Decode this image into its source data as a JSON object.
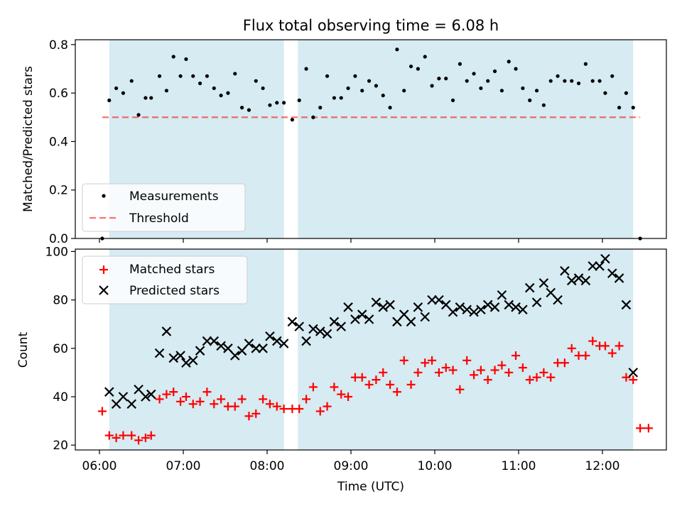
{
  "chart_data": {
    "type": "scatter",
    "title": "Flux total observing time = 6.08 h",
    "xlabel": "Time (UTC)",
    "x_ticks": [
      "06:00",
      "07:00",
      "08:00",
      "09:00",
      "10:00",
      "11:00",
      "12:00"
    ],
    "observing_windows": [
      [
        "06:07",
        "08:12"
      ],
      [
        "08:22",
        "12:22"
      ]
    ],
    "top_panel": {
      "ylabel": "Matched/Predicted stars",
      "ylim": [
        0,
        0.82
      ],
      "yticks": [
        "0.0",
        "0.2",
        "0.4",
        "0.6",
        "0.8"
      ],
      "threshold": 0.5,
      "legend": {
        "placement": "lower-left",
        "measurements": "Measurements",
        "threshold": "Threshold"
      },
      "measurements": [
        [
          "06:02",
          0.0
        ],
        [
          "06:07",
          0.57
        ],
        [
          "06:12",
          0.62
        ],
        [
          "06:17",
          0.6
        ],
        [
          "06:23",
          0.65
        ],
        [
          "06:28",
          0.51
        ],
        [
          "06:33",
          0.58
        ],
        [
          "06:37",
          0.58
        ],
        [
          "06:43",
          0.67
        ],
        [
          "06:48",
          0.61
        ],
        [
          "06:53",
          0.75
        ],
        [
          "06:58",
          0.67
        ],
        [
          "07:02",
          0.74
        ],
        [
          "07:07",
          0.67
        ],
        [
          "07:12",
          0.64
        ],
        [
          "07:17",
          0.67
        ],
        [
          "07:22",
          0.62
        ],
        [
          "07:27",
          0.59
        ],
        [
          "07:32",
          0.6
        ],
        [
          "07:37",
          0.68
        ],
        [
          "07:42",
          0.54
        ],
        [
          "07:47",
          0.53
        ],
        [
          "07:52",
          0.65
        ],
        [
          "07:57",
          0.62
        ],
        [
          "08:02",
          0.55
        ],
        [
          "08:07",
          0.56
        ],
        [
          "08:12",
          0.56
        ],
        [
          "08:18",
          0.49
        ],
        [
          "08:23",
          0.57
        ],
        [
          "08:28",
          0.7
        ],
        [
          "08:33",
          0.5
        ],
        [
          "08:38",
          0.54
        ],
        [
          "08:43",
          0.67
        ],
        [
          "08:48",
          0.58
        ],
        [
          "08:53",
          0.58
        ],
        [
          "08:58",
          0.62
        ],
        [
          "09:03",
          0.67
        ],
        [
          "09:08",
          0.61
        ],
        [
          "09:13",
          0.65
        ],
        [
          "09:18",
          0.63
        ],
        [
          "09:23",
          0.59
        ],
        [
          "09:28",
          0.54
        ],
        [
          "09:33",
          0.78
        ],
        [
          "09:38",
          0.61
        ],
        [
          "09:43",
          0.71
        ],
        [
          "09:48",
          0.7
        ],
        [
          "09:53",
          0.75
        ],
        [
          "09:58",
          0.63
        ],
        [
          "10:03",
          0.66
        ],
        [
          "10:08",
          0.66
        ],
        [
          "10:13",
          0.57
        ],
        [
          "10:18",
          0.72
        ],
        [
          "10:23",
          0.65
        ],
        [
          "10:28",
          0.68
        ],
        [
          "10:33",
          0.62
        ],
        [
          "10:38",
          0.65
        ],
        [
          "10:43",
          0.69
        ],
        [
          "10:48",
          0.61
        ],
        [
          "10:53",
          0.73
        ],
        [
          "10:58",
          0.7
        ],
        [
          "11:03",
          0.62
        ],
        [
          "11:08",
          0.57
        ],
        [
          "11:13",
          0.61
        ],
        [
          "11:18",
          0.55
        ],
        [
          "11:23",
          0.65
        ],
        [
          "11:28",
          0.67
        ],
        [
          "11:33",
          0.65
        ],
        [
          "11:38",
          0.65
        ],
        [
          "11:43",
          0.64
        ],
        [
          "11:48",
          0.72
        ],
        [
          "11:53",
          0.65
        ],
        [
          "11:58",
          0.65
        ],
        [
          "12:02",
          0.6
        ],
        [
          "12:07",
          0.67
        ],
        [
          "12:12",
          0.54
        ],
        [
          "12:17",
          0.6
        ],
        [
          "12:22",
          0.54
        ],
        [
          "12:27",
          0.0
        ]
      ]
    },
    "bottom_panel": {
      "ylabel": "Count",
      "ylim": [
        18,
        101
      ],
      "yticks": [
        "20",
        "40",
        "60",
        "80",
        "100"
      ],
      "legend": {
        "placement": "upper-left",
        "matched": "Matched stars",
        "predicted": "Predicted stars"
      },
      "matched": [
        [
          "06:02",
          34
        ],
        [
          "06:07",
          24
        ],
        [
          "06:12",
          23
        ],
        [
          "06:17",
          24
        ],
        [
          "06:23",
          24
        ],
        [
          "06:28",
          22
        ],
        [
          "06:33",
          23
        ],
        [
          "06:37",
          24
        ],
        [
          "06:43",
          39
        ],
        [
          "06:48",
          41
        ],
        [
          "06:53",
          42
        ],
        [
          "06:58",
          38
        ],
        [
          "07:02",
          40
        ],
        [
          "07:07",
          37
        ],
        [
          "07:12",
          38
        ],
        [
          "07:17",
          42
        ],
        [
          "07:22",
          37
        ],
        [
          "07:27",
          39
        ],
        [
          "07:32",
          36
        ],
        [
          "07:37",
          36
        ],
        [
          "07:42",
          39
        ],
        [
          "07:47",
          32
        ],
        [
          "07:52",
          33
        ],
        [
          "07:57",
          39
        ],
        [
          "08:02",
          37
        ],
        [
          "08:07",
          36
        ],
        [
          "08:12",
          35
        ],
        [
          "08:18",
          35
        ],
        [
          "08:23",
          35
        ],
        [
          "08:28",
          39
        ],
        [
          "08:33",
          44
        ],
        [
          "08:38",
          34
        ],
        [
          "08:43",
          36
        ],
        [
          "08:48",
          44
        ],
        [
          "08:53",
          41
        ],
        [
          "08:58",
          40
        ],
        [
          "09:03",
          48
        ],
        [
          "09:08",
          48
        ],
        [
          "09:13",
          45
        ],
        [
          "09:18",
          47
        ],
        [
          "09:23",
          50
        ],
        [
          "09:28",
          45
        ],
        [
          "09:33",
          42
        ],
        [
          "09:38",
          55
        ],
        [
          "09:43",
          45
        ],
        [
          "09:48",
          50
        ],
        [
          "09:53",
          54
        ],
        [
          "09:58",
          55
        ],
        [
          "10:03",
          50
        ],
        [
          "10:08",
          52
        ],
        [
          "10:13",
          51
        ],
        [
          "10:18",
          43
        ],
        [
          "10:23",
          55
        ],
        [
          "10:28",
          49
        ],
        [
          "10:33",
          51
        ],
        [
          "10:38",
          47
        ],
        [
          "10:43",
          51
        ],
        [
          "10:48",
          53
        ],
        [
          "10:53",
          50
        ],
        [
          "10:58",
          57
        ],
        [
          "11:03",
          52
        ],
        [
          "11:08",
          47
        ],
        [
          "11:13",
          48
        ],
        [
          "11:18",
          50
        ],
        [
          "11:23",
          48
        ],
        [
          "11:28",
          54
        ],
        [
          "11:33",
          54
        ],
        [
          "11:38",
          60
        ],
        [
          "11:43",
          57
        ],
        [
          "11:48",
          57
        ],
        [
          "11:53",
          63
        ],
        [
          "11:58",
          61
        ],
        [
          "12:02",
          61
        ],
        [
          "12:07",
          58
        ],
        [
          "12:12",
          61
        ],
        [
          "12:17",
          48
        ],
        [
          "12:22",
          47
        ],
        [
          "12:27",
          27
        ],
        [
          "12:33",
          27
        ]
      ],
      "predicted": [
        [
          "06:07",
          42
        ],
        [
          "06:12",
          37
        ],
        [
          "06:17",
          40
        ],
        [
          "06:23",
          37
        ],
        [
          "06:28",
          43
        ],
        [
          "06:33",
          40
        ],
        [
          "06:37",
          41
        ],
        [
          "06:43",
          58
        ],
        [
          "06:48",
          67
        ],
        [
          "06:53",
          56
        ],
        [
          "06:58",
          57
        ],
        [
          "07:02",
          54
        ],
        [
          "07:07",
          55
        ],
        [
          "07:12",
          59
        ],
        [
          "07:17",
          63
        ],
        [
          "07:22",
          63
        ],
        [
          "07:27",
          61
        ],
        [
          "07:32",
          60
        ],
        [
          "07:37",
          57
        ],
        [
          "07:42",
          59
        ],
        [
          "07:47",
          62
        ],
        [
          "07:52",
          60
        ],
        [
          "07:57",
          60
        ],
        [
          "08:02",
          65
        ],
        [
          "08:07",
          63
        ],
        [
          "08:12",
          62
        ],
        [
          "08:18",
          71
        ],
        [
          "08:23",
          69
        ],
        [
          "08:28",
          63
        ],
        [
          "08:33",
          68
        ],
        [
          "08:38",
          67
        ],
        [
          "08:43",
          66
        ],
        [
          "08:48",
          71
        ],
        [
          "08:53",
          69
        ],
        [
          "08:58",
          77
        ],
        [
          "09:03",
          72
        ],
        [
          "09:08",
          74
        ],
        [
          "09:13",
          72
        ],
        [
          "09:18",
          79
        ],
        [
          "09:23",
          77
        ],
        [
          "09:28",
          78
        ],
        [
          "09:33",
          71
        ],
        [
          "09:38",
          74
        ],
        [
          "09:43",
          71
        ],
        [
          "09:48",
          77
        ],
        [
          "09:53",
          73
        ],
        [
          "09:58",
          80
        ],
        [
          "10:03",
          80
        ],
        [
          "10:08",
          78
        ],
        [
          "10:13",
          75
        ],
        [
          "10:18",
          77
        ],
        [
          "10:23",
          76
        ],
        [
          "10:28",
          75
        ],
        [
          "10:33",
          76
        ],
        [
          "10:38",
          78
        ],
        [
          "10:43",
          77
        ],
        [
          "10:48",
          82
        ],
        [
          "10:53",
          78
        ],
        [
          "10:58",
          77
        ],
        [
          "11:03",
          76
        ],
        [
          "11:08",
          85
        ],
        [
          "11:13",
          79
        ],
        [
          "11:18",
          87
        ],
        [
          "11:23",
          83
        ],
        [
          "11:28",
          80
        ],
        [
          "11:33",
          92
        ],
        [
          "11:38",
          88
        ],
        [
          "11:43",
          89
        ],
        [
          "11:48",
          88
        ],
        [
          "11:53",
          94
        ],
        [
          "11:58",
          94
        ],
        [
          "12:02",
          97
        ],
        [
          "12:07",
          91
        ],
        [
          "12:12",
          89
        ],
        [
          "12:17",
          78
        ],
        [
          "12:22",
          50
        ]
      ]
    },
    "colors": {
      "shade": "#add8e6",
      "measurement": "#000000",
      "threshold": "#ff0000",
      "matched": "#ff0000",
      "predicted": "#000000"
    }
  }
}
